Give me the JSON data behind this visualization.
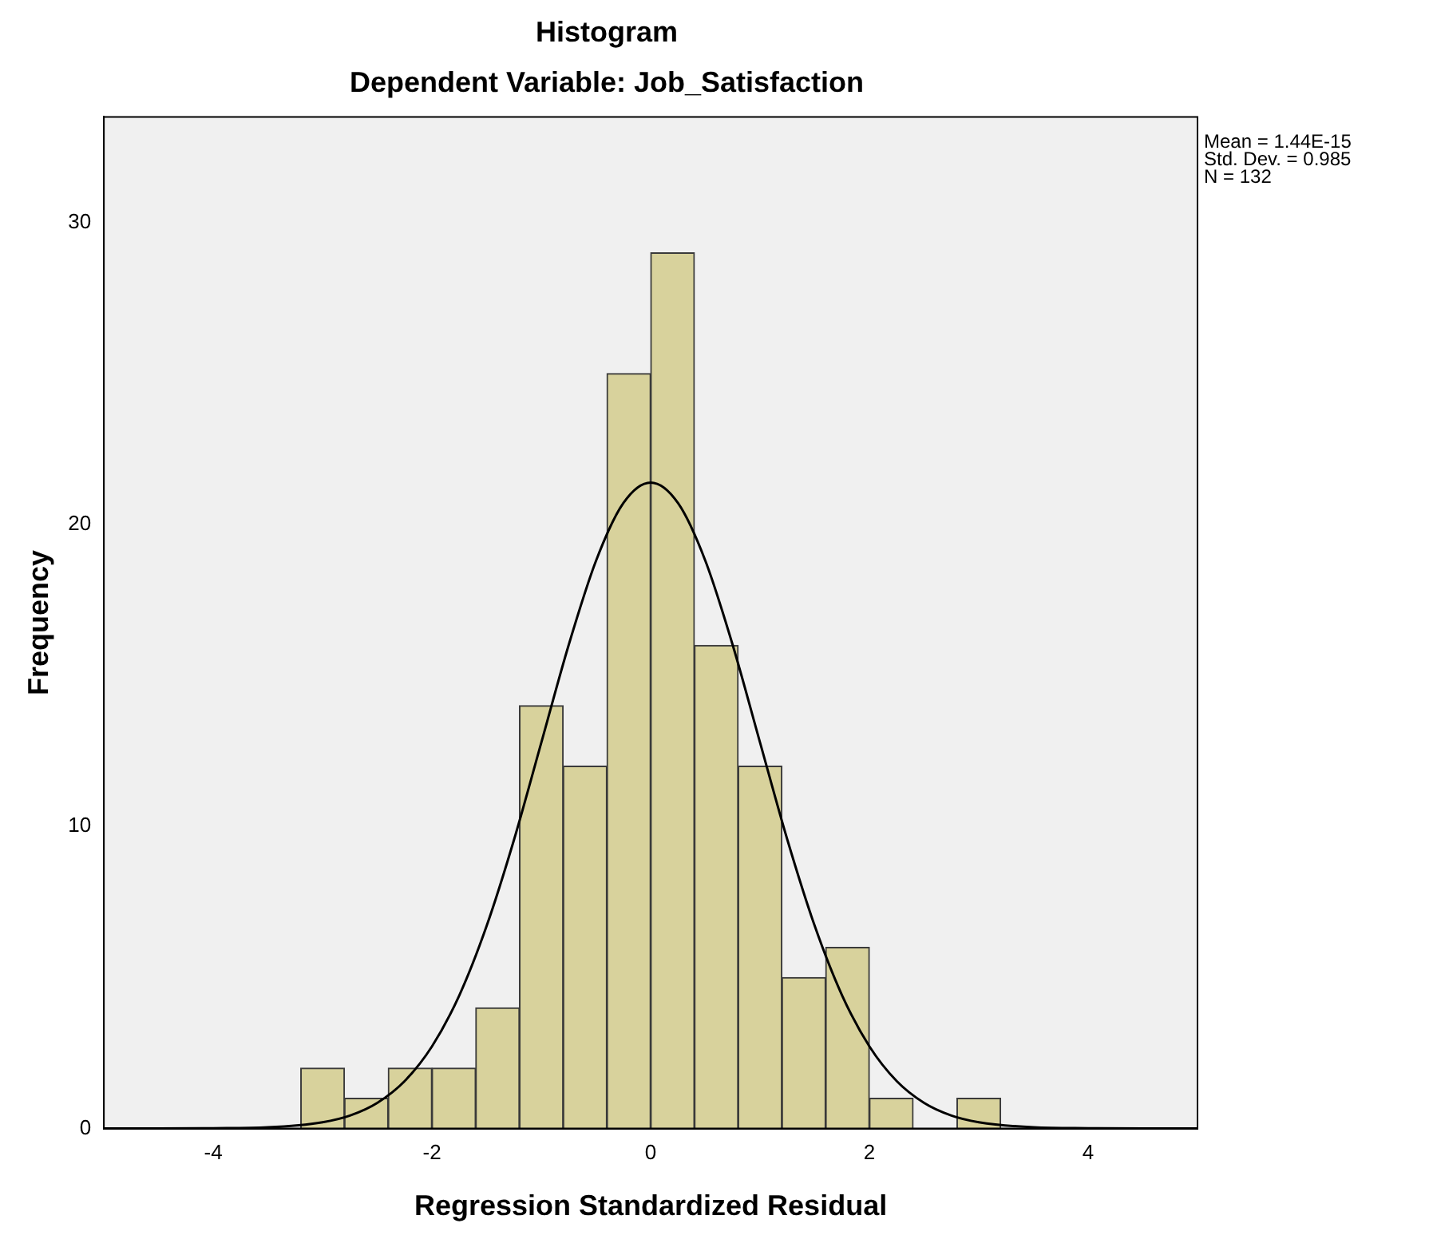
{
  "chart_data": {
    "type": "histogram",
    "title": "Histogram",
    "subtitle": "Dependent Variable: Job_Satisfaction",
    "xlabel": "Regression Standardized Residual",
    "ylabel": "Frequency",
    "bins": [
      -3.2,
      -2.8,
      -2.4,
      -2.0,
      -1.6,
      -1.2,
      -0.8,
      -0.4,
      0,
      0.4,
      0.8,
      1.2,
      1.6,
      2.0,
      2.4,
      2.8,
      3.2
    ],
    "values": [
      2,
      1,
      2,
      2,
      4,
      14,
      12,
      25,
      29,
      16,
      12,
      5,
      6,
      1,
      0,
      1
    ],
    "color": "#d8d29c",
    "series": [
      {
        "type": "line",
        "color": "#000000",
        "x": [
          -5,
          -4.5,
          -4,
          -3.5,
          -3,
          -2.75,
          -2.5,
          -2.25,
          -2,
          -1.75,
          -1.5,
          -1.25,
          -1,
          -0.75,
          -0.5,
          -0.25,
          0,
          0.25,
          0.5,
          0.75,
          1,
          1.25,
          1.5,
          1.75,
          2,
          2.25,
          2.5,
          2.75,
          3,
          3.5,
          4,
          4.5,
          5
        ],
        "values": [
          0,
          0,
          0.01,
          0.04,
          0.21,
          0.43,
          0.85,
          1.57,
          2.72,
          4.41,
          6.71,
          9.56,
          12.78,
          16.01,
          18.8,
          20.71,
          21.39,
          20.71,
          18.8,
          16.01,
          12.78,
          9.56,
          6.71,
          4.41,
          2.72,
          1.57,
          0.85,
          0.43,
          0.21,
          0.04,
          0.01,
          0,
          0
        ]
      }
    ],
    "xlim": [
      -5,
      5
    ],
    "xticks": [
      -4,
      -2,
      0,
      2,
      4
    ],
    "ylim": [
      0,
      33.5
    ],
    "yticks": [
      0,
      10,
      20,
      30
    ],
    "grid": false,
    "legend": false,
    "annotations": [
      "Mean = 1.44E-15",
      "Std. Dev. = 0.985",
      "N = 132"
    ]
  }
}
